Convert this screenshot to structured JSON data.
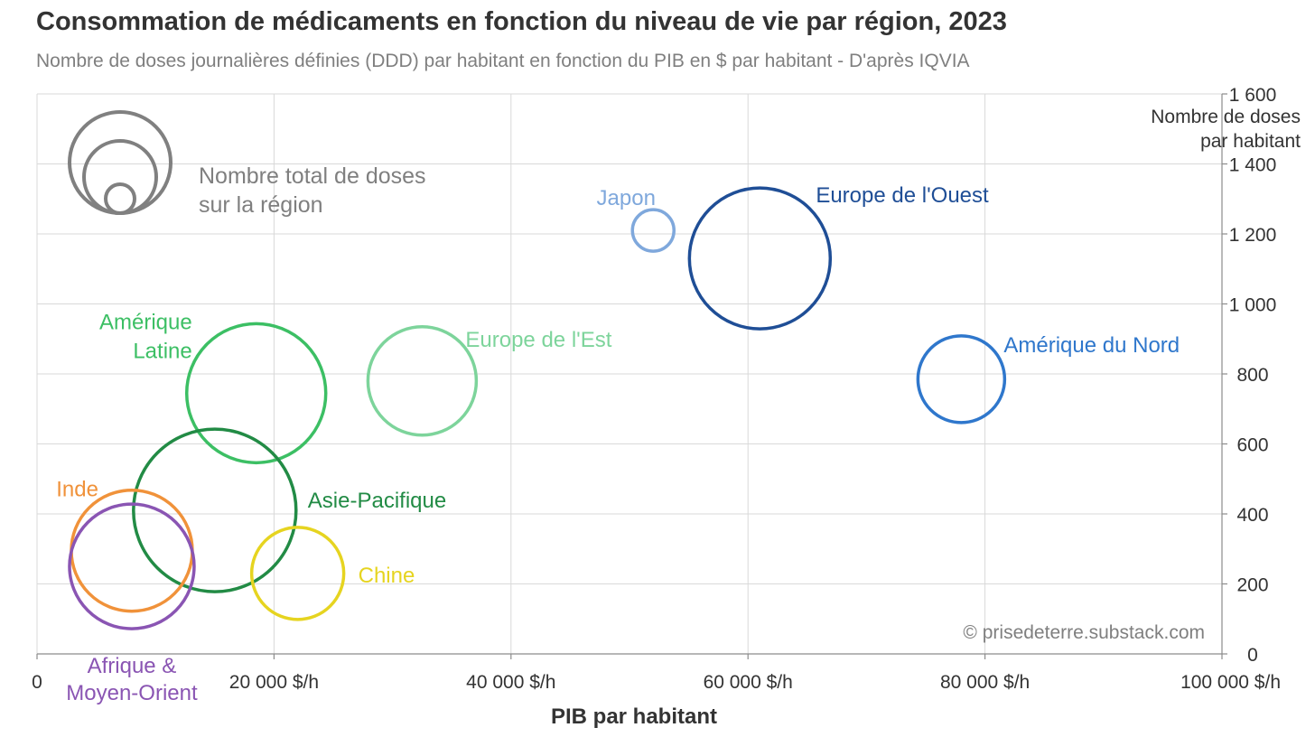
{
  "chart_data": {
    "type": "bubble",
    "title": "Consommation de médicaments en fonction du niveau de vie par région, 2023",
    "subtitle": "Nombre de doses journalières définies (DDD) par habitant en fonction du PIB en $ par habitant - D'après IQVIA",
    "xlabel": "PIB par habitant",
    "ylabel": [
      "Nombre de doses",
      "par habitant"
    ],
    "xlim": [
      0,
      100000
    ],
    "ylim": [
      0,
      1600
    ],
    "x_ticks": [
      0,
      20000,
      40000,
      60000,
      80000,
      100000
    ],
    "x_tick_labels": [
      "0",
      "20 000 $/h",
      "40 000 $/h",
      "60 000 $/h",
      "80 000 $/h",
      "100 000 $/h"
    ],
    "y_ticks": [
      0,
      200,
      400,
      600,
      800,
      1000,
      1200,
      1400,
      1600
    ],
    "y_tick_labels": [
      "0",
      "200",
      "400",
      "600",
      "800",
      "1 000",
      "1 200",
      "1 400",
      "1 600"
    ],
    "y_axis_position": "right",
    "grid": true,
    "size_legend_label": [
      "Nombre total de doses",
      "sur la région"
    ],
    "source_note": "© prisedeterre.substack.com",
    "series": [
      {
        "name": "Japon",
        "x": 52000,
        "y": 1210,
        "size": 23,
        "color": "#7fa8dc"
      },
      {
        "name": "Europe de l'Ouest",
        "x": 61000,
        "y": 1130,
        "size": 78,
        "color": "#1f4e96"
      },
      {
        "name": "Amérique du Nord",
        "x": 78000,
        "y": 785,
        "size": 48,
        "color": "#2f77cc"
      },
      {
        "name": "Europe de l'Est",
        "x": 32500,
        "y": 780,
        "size": 60,
        "color": "#7dd49b"
      },
      {
        "name": "Amérique Latine",
        "x": 18500,
        "y": 745,
        "size": 77,
        "color": "#3cbf64"
      },
      {
        "name": "Asie-Pacifique",
        "x": 15000,
        "y": 410,
        "size": 90,
        "color": "#228b45"
      },
      {
        "name": "Inde",
        "x": 8000,
        "y": 295,
        "size": 67,
        "color": "#f0923a"
      },
      {
        "name": "Afrique & Moyen-Orient",
        "x": 8000,
        "y": 250,
        "size": 69,
        "color": "#8a55b3"
      },
      {
        "name": "Chine",
        "x": 22000,
        "y": 230,
        "size": 51,
        "color": "#e6d420"
      }
    ]
  }
}
